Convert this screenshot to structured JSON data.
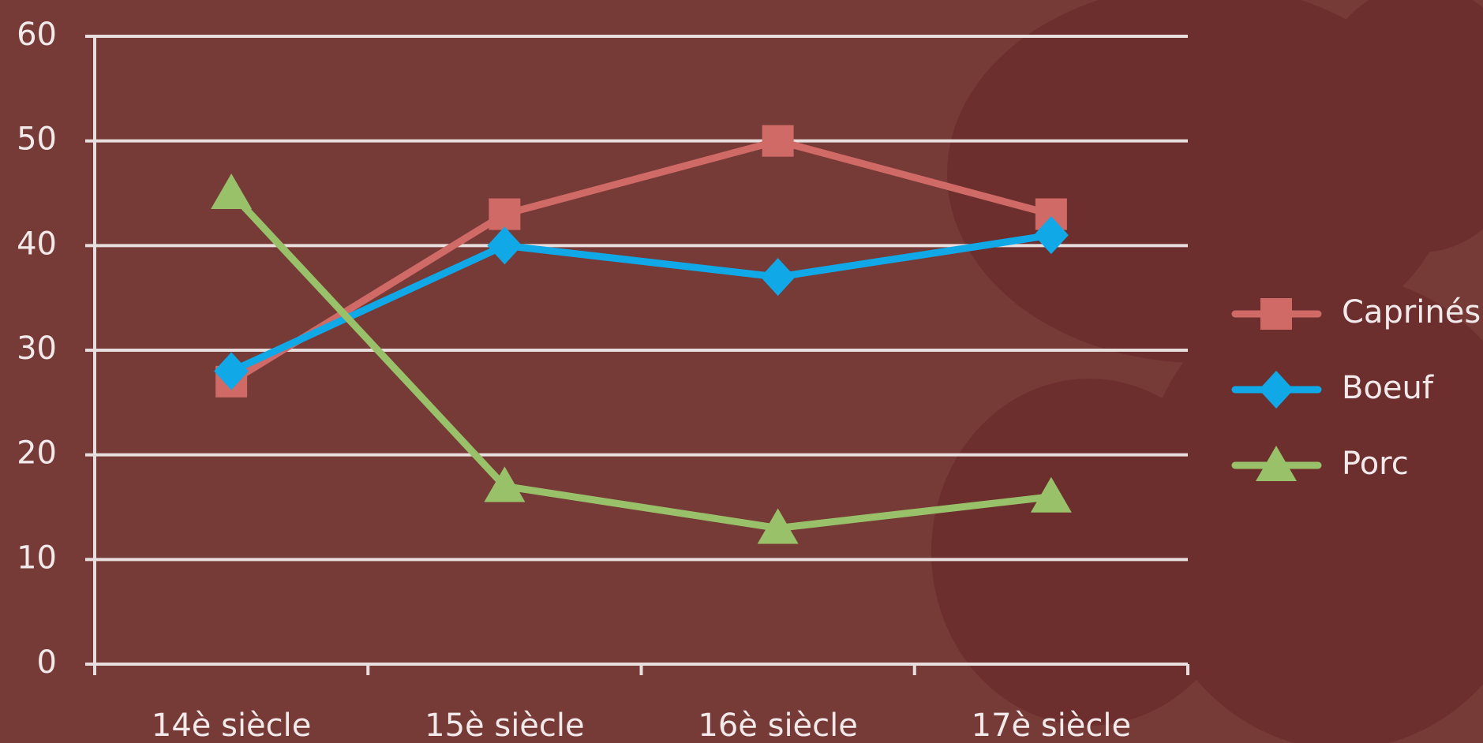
{
  "chart_data": {
    "type": "line",
    "categories": [
      "14è siècle",
      "15è siècle",
      "16è siècle",
      "17è siècle"
    ],
    "series": [
      {
        "name": "Caprinés",
        "color": "#d06a66",
        "marker": "square",
        "values": [
          27,
          43,
          50,
          43
        ]
      },
      {
        "name": "Boeuf",
        "color": "#10a8e6",
        "marker": "diamond",
        "values": [
          28,
          40,
          37,
          41
        ]
      },
      {
        "name": "Porc",
        "color": "#99c16a",
        "marker": "triangle",
        "values": [
          45,
          17,
          13,
          16
        ]
      }
    ],
    "ylim": [
      0,
      60
    ],
    "yticks": [
      0,
      10,
      20,
      30,
      40,
      50,
      60
    ],
    "grid": true,
    "legend": "right"
  }
}
